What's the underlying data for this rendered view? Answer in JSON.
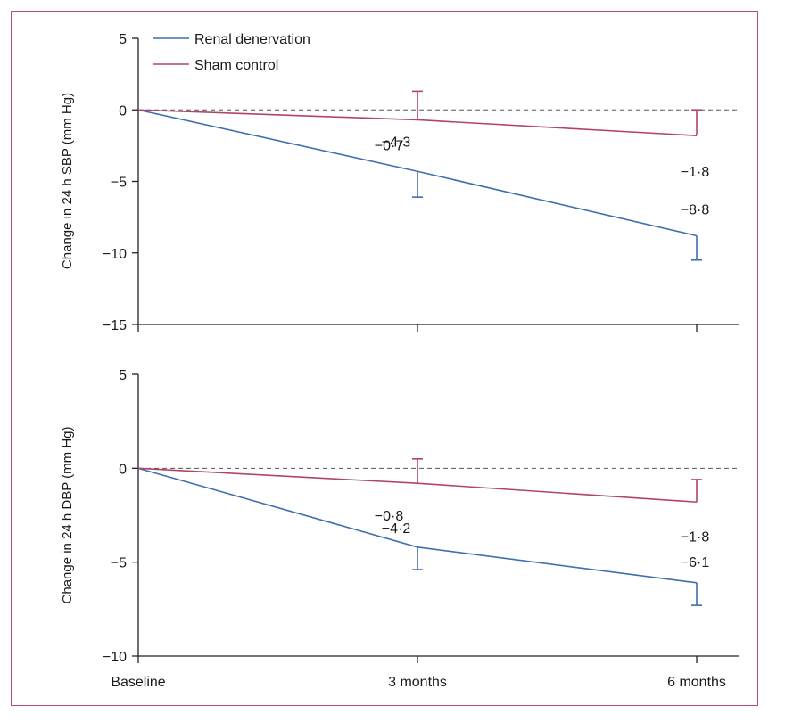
{
  "chart_data": [
    {
      "type": "line",
      "ylabel": "Change in 24 h SBP (mm Hg)",
      "x": [
        "Baseline",
        "3 months",
        "6 months"
      ],
      "ylim": [
        -15,
        5
      ],
      "yticks": [
        "5",
        "0",
        "-5",
        "-10",
        "-15"
      ],
      "reference_line": 0,
      "series": [
        {
          "name": "Renal denervation",
          "color": "#3f6fae",
          "values": [
            0,
            -4.3,
            -8.8
          ],
          "error_bar_extent": [
            null,
            -6.1,
            -10.5
          ],
          "labels": [
            "",
            "−4·3",
            "−8·8"
          ]
        },
        {
          "name": "Sham control",
          "color": "#b0456a",
          "values": [
            0,
            -0.7,
            -1.8
          ],
          "error_bar_extent": [
            null,
            1.3,
            0.0
          ],
          "labels": [
            "",
            "−0·7",
            "−1·8"
          ]
        }
      ],
      "legend": "top-left"
    },
    {
      "type": "line",
      "ylabel": "Change in 24 h DBP (mm Hg)",
      "x": [
        "Baseline",
        "3 months",
        "6 months"
      ],
      "ylim": [
        -10,
        5
      ],
      "yticks": [
        "5",
        "0",
        "-5",
        "-10"
      ],
      "reference_line": 0,
      "series": [
        {
          "name": "Renal denervation",
          "color": "#3f6fae",
          "values": [
            0,
            -4.2,
            -6.1
          ],
          "error_bar_extent": [
            null,
            -5.4,
            -7.3
          ],
          "labels": [
            "",
            "−4·2",
            "−6·1"
          ]
        },
        {
          "name": "Sham control",
          "color": "#b0456a",
          "values": [
            0,
            -0.8,
            -1.8
          ],
          "error_bar_extent": [
            null,
            0.5,
            -0.6
          ],
          "labels": [
            "",
            "−0·8",
            "−1·8"
          ]
        }
      ]
    }
  ],
  "xlabels": [
    "Baseline",
    "3 months",
    "6 months"
  ]
}
